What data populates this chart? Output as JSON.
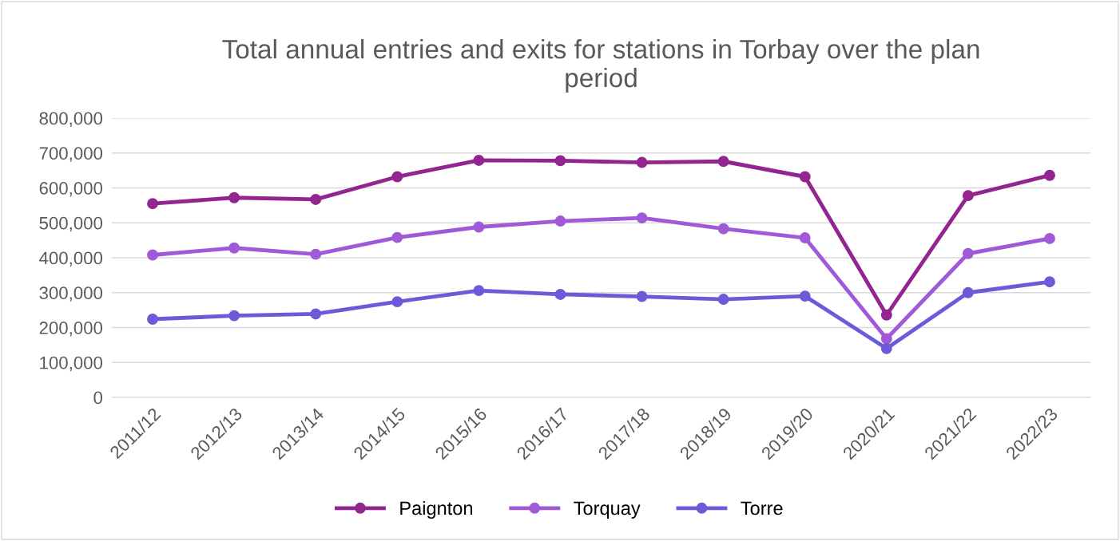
{
  "chart_data": {
    "type": "line",
    "title": "Total annual entries and exits for stations in Torbay over the plan\nperiod",
    "categories": [
      "2011/12",
      "2012/13",
      "2013/14",
      "2014/15",
      "2015/16",
      "2016/17",
      "2017/18",
      "2018/19",
      "2019/20",
      "2020/21",
      "2021/22",
      "2022/23"
    ],
    "series": [
      {
        "name": "Paignton",
        "color": "#922590",
        "values": [
          555000,
          572000,
          567000,
          632000,
          679000,
          678000,
          673000,
          676000,
          632000,
          236000,
          578000,
          636000
        ]
      },
      {
        "name": "Torquay",
        "color": "#a05ad8",
        "values": [
          408000,
          428000,
          410000,
          458000,
          488000,
          505000,
          514000,
          483000,
          457000,
          168000,
          412000,
          455000
        ]
      },
      {
        "name": "Torre",
        "color": "#6c5bd8",
        "values": [
          224000,
          234000,
          239000,
          274000,
          306000,
          295000,
          289000,
          281000,
          290000,
          140000,
          300000,
          331000
        ]
      }
    ],
    "ylim": [
      0,
      800000
    ],
    "yticks": [
      {
        "value": 0,
        "label": "0"
      },
      {
        "value": 100000,
        "label": "100,000"
      },
      {
        "value": 200000,
        "label": "200,000"
      },
      {
        "value": 300000,
        "label": "300,000"
      },
      {
        "value": 400000,
        "label": "400,000"
      },
      {
        "value": 500000,
        "label": "500,000"
      },
      {
        "value": 600000,
        "label": "600,000"
      },
      {
        "value": 700000,
        "label": "700,000"
      },
      {
        "value": 800000,
        "label": "800,000"
      }
    ],
    "grid": "y",
    "legend": "bottom",
    "marker": "circle",
    "line_style": "solid"
  }
}
